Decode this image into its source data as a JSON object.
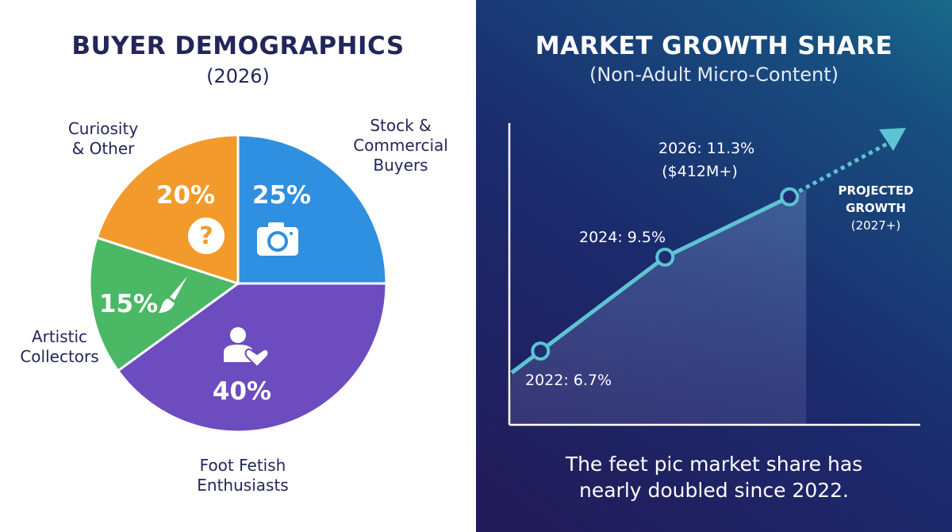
{
  "chart_data": [
    {
      "type": "pie",
      "title": "BUYER DEMOGRAPHICS",
      "subtitle": "(2026)",
      "slices": [
        {
          "label": "Stock & Commercial Buyers",
          "label_lines": [
            "Stock &",
            "Commercial",
            "Buyers"
          ],
          "value": 25,
          "display": "25%",
          "color": "#2f8fe0",
          "icon": "camera-icon"
        },
        {
          "label": "Foot Fetish Enthusiasts",
          "label_lines": [
            "Foot Fetish",
            "Enthusiasts"
          ],
          "value": 40,
          "display": "40%",
          "color": "#6d4cbf",
          "icon": "person-heart-icon"
        },
        {
          "label": "Artistic Collectors",
          "label_lines": [
            "Artistic",
            "Collectors"
          ],
          "value": 15,
          "display": "15%",
          "color": "#4bb866",
          "icon": "paintbrush-icon"
        },
        {
          "label": "Curiosity & Other",
          "label_lines": [
            "Curiosity",
            "& Other"
          ],
          "value": 20,
          "display": "20%",
          "color": "#f39a2c",
          "icon": "question-icon"
        }
      ]
    },
    {
      "type": "line",
      "title": "MARKET GROWTH SHARE",
      "subtitle": "(Non-Adult Micro-Content)",
      "x": [
        2022,
        2024,
        2026
      ],
      "y": [
        6.7,
        9.5,
        11.3
      ],
      "point_labels": [
        "2022: 6.7%",
        "2024: 9.5%",
        "2026: 11.3%"
      ],
      "extra_label": "($412M+)",
      "projection": {
        "lines": [
          "PROJECTED",
          "GROWTH",
          "(2027+)"
        ]
      },
      "xlim": [
        2021.5,
        2028.1
      ],
      "ylim": [
        4.5,
        13.5
      ],
      "grid": false,
      "line_color": "#5ec3d3",
      "footnote": [
        "The feet pic market share has",
        "nearly doubled since 2022."
      ]
    }
  ]
}
